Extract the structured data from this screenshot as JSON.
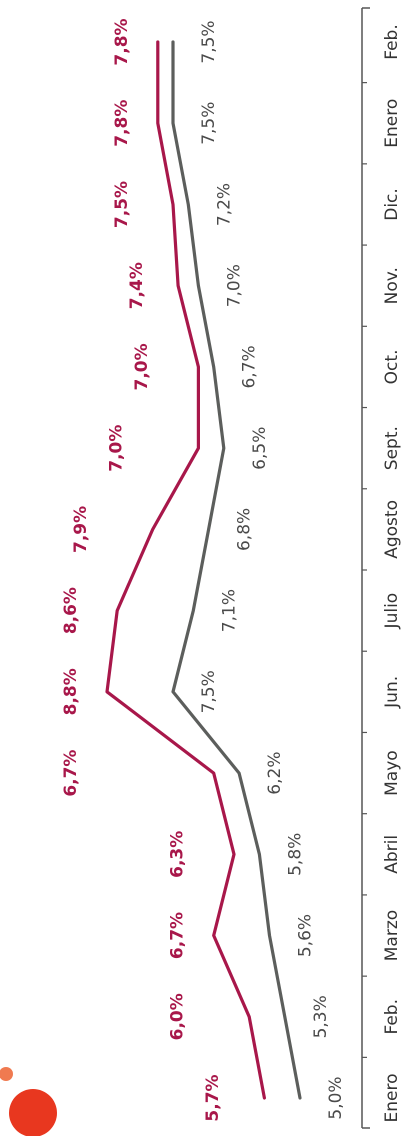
{
  "chart_data": {
    "type": "line",
    "orientation": "rotated-90-ccw",
    "categories": [
      "Enero",
      "Feb.",
      "Marzo",
      "Abril",
      "Mayo",
      "Jun.",
      "Julio",
      "Agosto",
      "Sept.",
      "Oct.",
      "Nov.",
      "Dic.",
      "Enero",
      "Feb."
    ],
    "series": [
      {
        "values": [
          5.7,
          6.0,
          6.7,
          6.3,
          6.7,
          8.8,
          8.6,
          7.9,
          7.0,
          7.0,
          7.4,
          7.5,
          7.8,
          7.8
        ],
        "labels": [
          "5,7%",
          "6,0%",
          "6,7%",
          "6,3%",
          "6,7%",
          "8,8%",
          "8,6%",
          "7,9%",
          "7,0%",
          "7,0%",
          "7,4%",
          "7,5%",
          "7,8%",
          "7,8%"
        ],
        "color": "#a8174a"
      },
      {
        "values": [
          5.0,
          5.3,
          5.6,
          5.8,
          6.2,
          7.5,
          7.1,
          6.8,
          6.5,
          6.7,
          7.0,
          7.2,
          7.5,
          7.5
        ],
        "labels": [
          "5,0%",
          "5,3%",
          "5,6%",
          "5,8%",
          "6,2%",
          "7,5%",
          "7,1%",
          "6,8%",
          "6,5%",
          "6,7%",
          "7,0%",
          "7,2%",
          "7,5%",
          "7,5%"
        ],
        "color": "#5c5e5c"
      }
    ],
    "title": "",
    "xlabel": "",
    "ylabel": "",
    "grid": false,
    "legend": "none"
  },
  "colors": {
    "accent_dot": "#e8371f",
    "accent_dot_light": "#f07a50",
    "axis": "#555555"
  },
  "decorations": {
    "corner_dot": "orange-dot"
  }
}
